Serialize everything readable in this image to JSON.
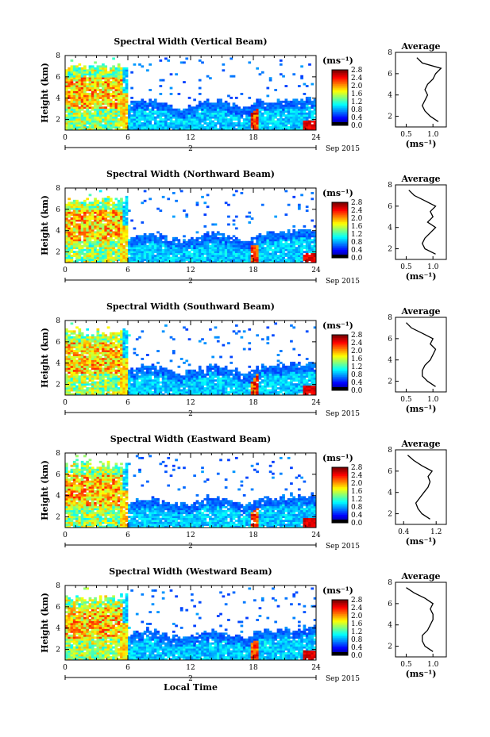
{
  "chart_data": [
    {
      "type": "heatmap",
      "title": "Spectral Width (Vertical Beam)",
      "ylabel": "Height (km)",
      "y_ticks": [
        "2",
        "4",
        "6",
        "8"
      ],
      "x_ticks": [
        "0",
        "6",
        "12",
        "18",
        "24"
      ],
      "xlim": [
        0,
        24
      ],
      "ylim": [
        1,
        8
      ],
      "date_day": "2",
      "date_label": "Sep 2015",
      "colorbar": {
        "unit": "(ms⁻¹)",
        "ticks": [
          "0.0",
          "0.4",
          "0.8",
          "1.2",
          "1.6",
          "2.0",
          "2.4",
          "2.8"
        ],
        "colormap": "jet"
      },
      "average": {
        "title": "Average",
        "xlabel": "(ms⁻¹)",
        "x_ticks": [
          "0.5",
          "1.0"
        ],
        "y_ticks": [
          "2",
          "4",
          "6",
          "8"
        ],
        "heights": [
          1.5,
          2,
          2.5,
          3,
          3.5,
          4,
          4.5,
          5,
          5.5,
          6,
          6.5,
          7,
          7.5
        ],
        "values": [
          1.1,
          0.95,
          0.85,
          0.8,
          0.85,
          0.9,
          0.85,
          0.9,
          1.0,
          1.05,
          1.15,
          0.8,
          0.7
        ]
      }
    },
    {
      "type": "heatmap",
      "title": "Spectral Width (Northward Beam)",
      "ylabel": "Height (km)",
      "y_ticks": [
        "2",
        "4",
        "6",
        "8"
      ],
      "x_ticks": [
        "0",
        "6",
        "12",
        "18",
        "24"
      ],
      "xlim": [
        0,
        24
      ],
      "ylim": [
        1,
        8
      ],
      "date_day": "2",
      "date_label": "Sep 2015",
      "colorbar": {
        "unit": "(ms⁻¹)",
        "ticks": [
          "0.0",
          "0.4",
          "0.8",
          "1.2",
          "1.6",
          "2.0",
          "2.4",
          "2.8"
        ],
        "colormap": "jet"
      },
      "average": {
        "title": "Average",
        "xlabel": "(ms⁻¹)",
        "x_ticks": [
          "0.5",
          "1.0"
        ],
        "y_ticks": [
          "2",
          "4",
          "6",
          "8"
        ],
        "heights": [
          1.5,
          2,
          2.5,
          3,
          3.5,
          4,
          4.5,
          5,
          5.5,
          6,
          6.5,
          7,
          7.5
        ],
        "values": [
          1.05,
          0.85,
          0.8,
          0.85,
          0.95,
          1.05,
          0.9,
          1.0,
          0.95,
          1.05,
          0.85,
          0.65,
          0.55
        ]
      }
    },
    {
      "type": "heatmap",
      "title": "Spectral Width (Southward Beam)",
      "ylabel": "Height (km)",
      "y_ticks": [
        "2",
        "4",
        "6",
        "8"
      ],
      "x_ticks": [
        "0",
        "6",
        "12",
        "18",
        "24"
      ],
      "xlim": [
        0,
        24
      ],
      "ylim": [
        1,
        8
      ],
      "date_day": "2",
      "date_label": "Sep 2015",
      "colorbar": {
        "unit": "(ms⁻¹)",
        "ticks": [
          "0.0",
          "0.4",
          "0.8",
          "1.2",
          "1.6",
          "2.0",
          "2.4",
          "2.8"
        ],
        "colormap": "jet"
      },
      "average": {
        "title": "Average",
        "xlabel": "(ms⁻¹)",
        "x_ticks": [
          "0.5",
          "1.0"
        ],
        "y_ticks": [
          "2",
          "4",
          "6",
          "8"
        ],
        "heights": [
          1.5,
          2,
          2.5,
          3,
          3.5,
          4,
          4.5,
          5,
          5.5,
          6,
          6.5,
          7,
          7.5
        ],
        "values": [
          1.05,
          0.9,
          0.8,
          0.8,
          0.85,
          0.95,
          1.0,
          1.05,
          0.95,
          1.0,
          0.8,
          0.6,
          0.5
        ]
      }
    },
    {
      "type": "heatmap",
      "title": "Spectral Width (Eastward Beam)",
      "ylabel": "Height (km)",
      "y_ticks": [
        "2",
        "4",
        "6",
        "8"
      ],
      "x_ticks": [
        "0",
        "6",
        "12",
        "18",
        "24"
      ],
      "xlim": [
        0,
        24
      ],
      "ylim": [
        1,
        8
      ],
      "date_day": "2",
      "date_label": "Sep 2015",
      "colorbar": {
        "unit": "(ms⁻¹)",
        "ticks": [
          "0.0",
          "0.4",
          "0.8",
          "1.2",
          "1.6",
          "2.0",
          "2.4",
          "2.8"
        ],
        "colormap": "jet"
      },
      "average": {
        "title": "Average",
        "xlabel": "(ms⁻¹)",
        "x_ticks": [
          "0.4",
          "1.2"
        ],
        "y_ticks": [
          "2",
          "4",
          "6",
          "8"
        ],
        "heights": [
          1.5,
          2,
          2.5,
          3,
          3.5,
          4,
          4.5,
          5,
          5.5,
          6,
          6.5,
          7,
          7.5
        ],
        "values": [
          1.05,
          0.85,
          0.75,
          0.7,
          0.8,
          0.9,
          1.0,
          1.05,
          1.0,
          1.1,
          0.85,
          0.65,
          0.5
        ]
      }
    },
    {
      "type": "heatmap",
      "title": "Spectral Width (Westward Beam)",
      "ylabel": "Height (km)",
      "y_ticks": [
        "2",
        "4",
        "6",
        "8"
      ],
      "x_ticks": [
        "0",
        "6",
        "12",
        "18",
        "24"
      ],
      "xlim": [
        0,
        24
      ],
      "ylim": [
        1,
        8
      ],
      "date_day": "2",
      "date_label": "Sep 2015",
      "xlabel": "Local Time",
      "colorbar": {
        "unit": "(ms⁻¹)",
        "ticks": [
          "0.0",
          "0.4",
          "0.8",
          "1.2",
          "1.6",
          "2.0",
          "2.4",
          "2.8"
        ],
        "colormap": "jet"
      },
      "average": {
        "title": "Average",
        "xlabel": "(ms⁻¹)",
        "x_ticks": [
          "0.5",
          "1.0"
        ],
        "y_ticks": [
          "2",
          "4",
          "6",
          "8"
        ],
        "heights": [
          1.5,
          2,
          2.5,
          3,
          3.5,
          4,
          4.5,
          5,
          5.5,
          6,
          6.5,
          7,
          7.5
        ],
        "values": [
          1.0,
          0.85,
          0.8,
          0.8,
          0.9,
          0.95,
          1.0,
          1.0,
          0.95,
          1.0,
          0.85,
          0.65,
          0.5
        ]
      }
    }
  ]
}
